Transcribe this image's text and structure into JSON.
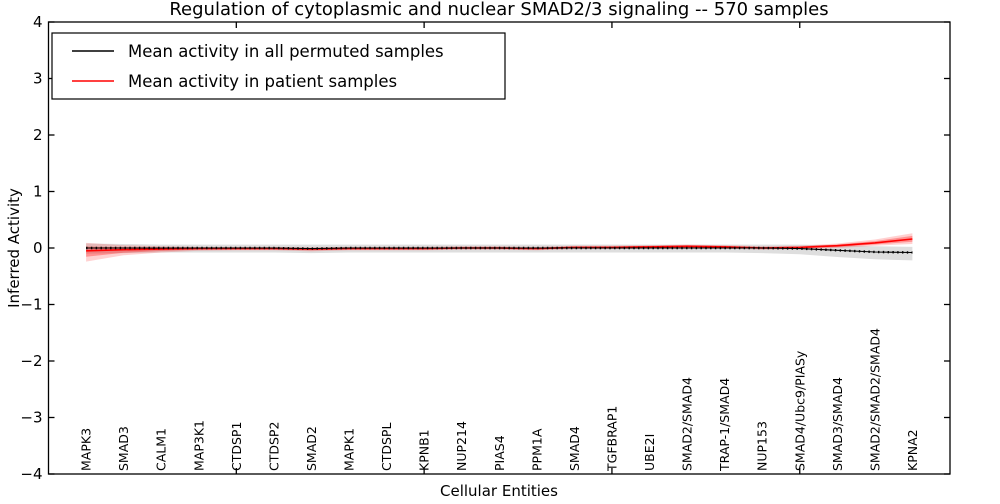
{
  "title": "Regulation of cytoplasmic and nuclear SMAD2/3 signaling -- 570 samples",
  "axes": {
    "xlabel": "Cellular Entities",
    "ylabel": "Inferred Activity",
    "yticks": [
      {
        "value": 4,
        "label": "4"
      },
      {
        "value": 3,
        "label": "3"
      },
      {
        "value": 2,
        "label": "2"
      },
      {
        "value": 1,
        "label": "1"
      },
      {
        "value": 0,
        "label": "0"
      },
      {
        "value": -1,
        "label": "−1"
      },
      {
        "value": -2,
        "label": "−2"
      },
      {
        "value": -3,
        "label": "−3"
      },
      {
        "value": -4,
        "label": "−4"
      }
    ]
  },
  "legend": {
    "entries": [
      {
        "label": "Mean activity in all permuted samples",
        "color": "#000000"
      },
      {
        "label": "Mean activity in patient samples",
        "color": "#ff0000"
      }
    ]
  },
  "chart_data": {
    "type": "line",
    "title": "Regulation of cytoplasmic and nuclear SMAD2/3 signaling -- 570 samples",
    "xlabel": "Cellular Entities",
    "ylabel": "Inferred Activity",
    "ylim": [
      -4,
      4
    ],
    "xlim": [
      -1,
      23
    ],
    "grid": false,
    "legend_position": "upper left",
    "major_xtick_indices": [
      4,
      9,
      14,
      19
    ],
    "categories": [
      "MAPK3",
      "SMAD3",
      "CALM1",
      "MAP3K1",
      "CTDSP1",
      "CTDSP2",
      "SMAD2",
      "MAPK1",
      "CTDSPL",
      "KPNB1",
      "NUP214",
      "PIAS4",
      "PPM1A",
      "SMAD4",
      "TGFBRAP1",
      "UBE2I",
      "SMAD2/SMAD4",
      "TRAP-1/SMAD4",
      "NUP153",
      "SMAD4/Ubc9/PIASy",
      "SMAD3/SMAD4",
      "SMAD2/SMAD2/SMAD4",
      "KPNA2"
    ],
    "series": [
      {
        "name": "Mean activity in all permuted samples",
        "color": "#000000",
        "band_color": "#888888",
        "band_opacity": 0.28,
        "values": [
          0.0,
          0.0,
          0.0,
          0.0,
          0.0,
          0.0,
          -0.01,
          0.0,
          0.0,
          0.0,
          0.0,
          0.0,
          0.0,
          0.0,
          0.0,
          0.0,
          0.0,
          0.0,
          0.0,
          -0.01,
          -0.04,
          -0.07,
          -0.08
        ],
        "band_upper": [
          0.08,
          0.07,
          0.06,
          0.06,
          0.06,
          0.06,
          0.06,
          0.06,
          0.06,
          0.06,
          0.06,
          0.06,
          0.06,
          0.06,
          0.06,
          0.06,
          0.06,
          0.06,
          0.06,
          0.06,
          0.05,
          0.03,
          0.02
        ],
        "band_lower": [
          -0.1,
          -0.09,
          -0.08,
          -0.08,
          -0.08,
          -0.08,
          -0.09,
          -0.08,
          -0.08,
          -0.08,
          -0.08,
          -0.08,
          -0.08,
          -0.08,
          -0.08,
          -0.08,
          -0.08,
          -0.08,
          -0.09,
          -0.11,
          -0.16,
          -0.2,
          -0.22
        ]
      },
      {
        "name": "Mean activity in patient samples",
        "color": "#ff0000",
        "band_color": "#ff0000",
        "band_opacity": 0.18,
        "values": [
          -0.05,
          -0.03,
          -0.02,
          -0.01,
          -0.01,
          -0.01,
          -0.02,
          -0.01,
          -0.01,
          -0.01,
          0.0,
          0.0,
          -0.01,
          0.01,
          0.01,
          0.02,
          0.03,
          0.02,
          0.0,
          0.01,
          0.04,
          0.09,
          0.16
        ],
        "band_upper": [
          0.09,
          0.05,
          0.03,
          0.02,
          0.02,
          0.02,
          0.01,
          0.02,
          0.02,
          0.02,
          0.03,
          0.03,
          0.02,
          0.04,
          0.04,
          0.05,
          0.06,
          0.05,
          0.03,
          0.04,
          0.08,
          0.15,
          0.26
        ],
        "band_lower": [
          -0.24,
          -0.13,
          -0.08,
          -0.05,
          -0.04,
          -0.04,
          -0.06,
          -0.04,
          -0.04,
          -0.04,
          -0.03,
          -0.03,
          -0.04,
          -0.02,
          -0.02,
          -0.01,
          0.0,
          -0.01,
          -0.03,
          -0.02,
          0.0,
          0.04,
          0.07
        ]
      }
    ]
  }
}
